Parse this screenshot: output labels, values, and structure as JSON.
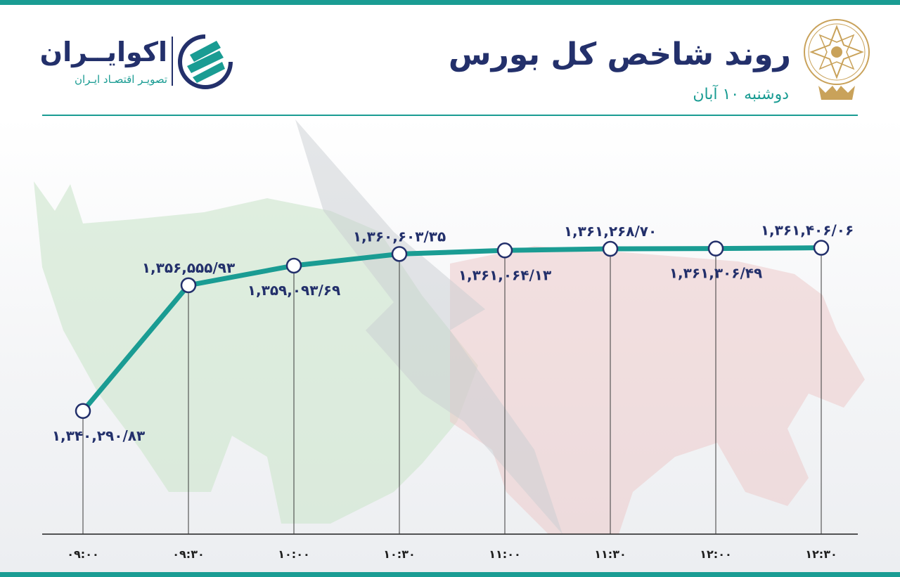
{
  "header": {
    "title": "روند شاخص کل بورس",
    "subtitle": "دوشنبه ۱۰ آبان"
  },
  "brand": {
    "name": "اکوایــران",
    "tagline": "تصویـر اقتصـاد ایـران"
  },
  "colors": {
    "accent": "#1a9c93",
    "text": "#23306b",
    "bull": "#cfe6cf",
    "bear": "#eccaca"
  },
  "chart_data": {
    "type": "line",
    "title": "روند شاخص کل بورس",
    "subtitle": "دوشنبه ۱۰ آبان",
    "x": [
      "۰۹:۰۰",
      "۰۹:۳۰",
      "۱۰:۰۰",
      "۱۰:۳۰",
      "۱۱:۰۰",
      "۱۱:۳۰",
      "۱۲:۰۰",
      "۱۲:۳۰"
    ],
    "values": [
      1340290.83,
      1356555.93,
      1359093.69,
      1360603.35,
      1361064.13,
      1361268.7,
      1361306.49,
      1361406.06
    ],
    "value_labels": [
      "۱,۳۴۰,۲۹۰/۸۳",
      "۱,۳۵۶,۵۵۵/۹۳",
      "۱,۳۵۹,۰۹۳/۶۹",
      "۱,۳۶۰,۶۰۳/۳۵",
      "۱,۳۶۱,۰۶۴/۱۳",
      "۱,۳۶۱,۲۶۸/۷۰",
      "۱,۳۶۱,۳۰۶/۴۹",
      "۱,۳۶۱,۴۰۶/۰۶"
    ],
    "label_position": [
      "below",
      "above",
      "below",
      "above",
      "below",
      "above",
      "below",
      "above"
    ],
    "xlabel": "",
    "ylabel": "",
    "grid": false,
    "legend": "none"
  }
}
